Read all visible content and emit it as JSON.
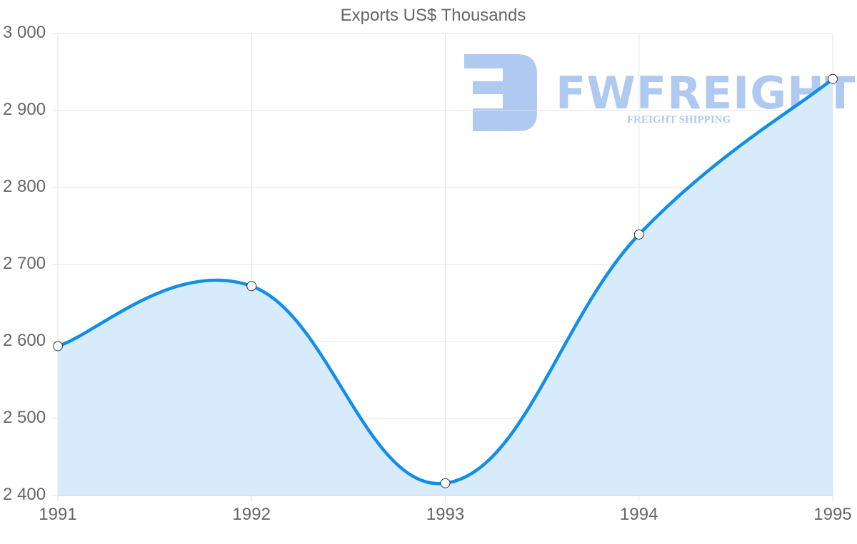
{
  "chart_data": {
    "type": "area",
    "title": "Exports US$ Thousands",
    "xlabel": "",
    "ylabel": "",
    "categories": [
      "1991",
      "1992",
      "1993",
      "1994",
      "1995"
    ],
    "series": [
      {
        "name": "Exports US$ Thousands",
        "values": [
          2594,
          2672,
          2416,
          2739,
          2941
        ],
        "color": "#108ee9",
        "fill": "#d8ebfc"
      }
    ],
    "ylim": [
      2400,
      3000
    ],
    "yticks": [
      "3 000",
      "2 900",
      "2 800",
      "2 700",
      "2 600",
      "2 500",
      "2 400"
    ],
    "grid": true,
    "legend": "none"
  },
  "watermark": {
    "brand": "FWFREIGHT",
    "tagline": "FREIGHT SHIPPING"
  }
}
